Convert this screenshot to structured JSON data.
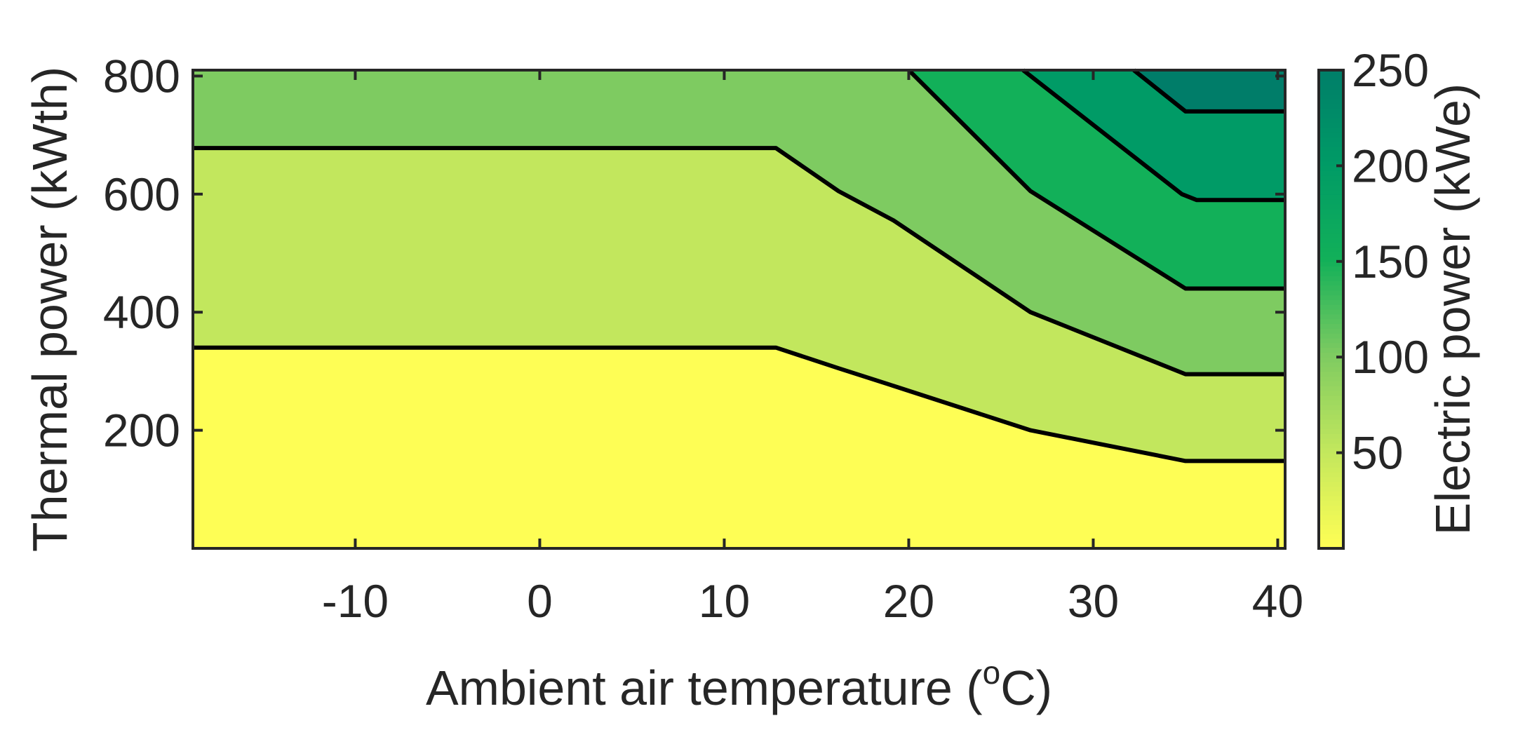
{
  "chart_data": {
    "type": "contour",
    "xlabel": "Ambient air temperature (",
    "xlabel_sup": "o",
    "xlabel_suffix": "C)",
    "ylabel": "Thermal power (kWth)",
    "colorbar_label": "Electric power (kWe)",
    "xlim": [
      -18.8,
      40.4
    ],
    "ylim": [
      0,
      810
    ],
    "xticks": [
      -10,
      0,
      10,
      20,
      30,
      40
    ],
    "yticks": [
      200,
      400,
      600,
      800
    ],
    "colorbar_lim": [
      0,
      250
    ],
    "colorbar_ticks": [
      50,
      100,
      150,
      200,
      250
    ],
    "colormap": [
      "#fefe55",
      "#c2e75d",
      "#7ecb61",
      "#12b059",
      "#009b66",
      "#007d69"
    ],
    "bands": [
      {
        "range": [
          0,
          50
        ],
        "color": "#fefe55"
      },
      {
        "range": [
          50,
          100
        ],
        "color": "#c2e75d"
      },
      {
        "range": [
          100,
          150
        ],
        "color": "#7ecb61"
      },
      {
        "range": [
          150,
          200
        ],
        "color": "#12b059"
      },
      {
        "range": [
          200,
          250
        ],
        "color": "#009b66"
      },
      {
        "range": [
          250,
          300
        ],
        "color": "#007d69"
      }
    ],
    "contours": [
      {
        "level": 50,
        "points": [
          [
            -18.8,
            340
          ],
          [
            12.8,
            340
          ],
          [
            16.2,
            305
          ],
          [
            19.2,
            275
          ],
          [
            26.6,
            200
          ],
          [
            35.0,
            148
          ],
          [
            40.4,
            148
          ]
        ]
      },
      {
        "level": 100,
        "points": [
          [
            -18.8,
            678
          ],
          [
            12.8,
            678
          ],
          [
            16.2,
            605
          ],
          [
            19.2,
            555
          ],
          [
            26.6,
            400
          ],
          [
            35.0,
            295
          ],
          [
            40.4,
            295
          ]
        ]
      },
      {
        "level": 150,
        "points": [
          [
            20.0,
            810
          ],
          [
            26.6,
            605
          ],
          [
            35.0,
            440
          ],
          [
            40.4,
            440
          ]
        ]
      },
      {
        "level": 200,
        "points": [
          [
            26.2,
            810
          ],
          [
            34.8,
            600
          ],
          [
            35.6,
            590
          ],
          [
            40.4,
            590
          ]
        ]
      },
      {
        "level": 250,
        "points": [
          [
            32.2,
            810
          ],
          [
            35.0,
            740
          ],
          [
            40.4,
            740
          ]
        ]
      }
    ],
    "grid": false
  }
}
